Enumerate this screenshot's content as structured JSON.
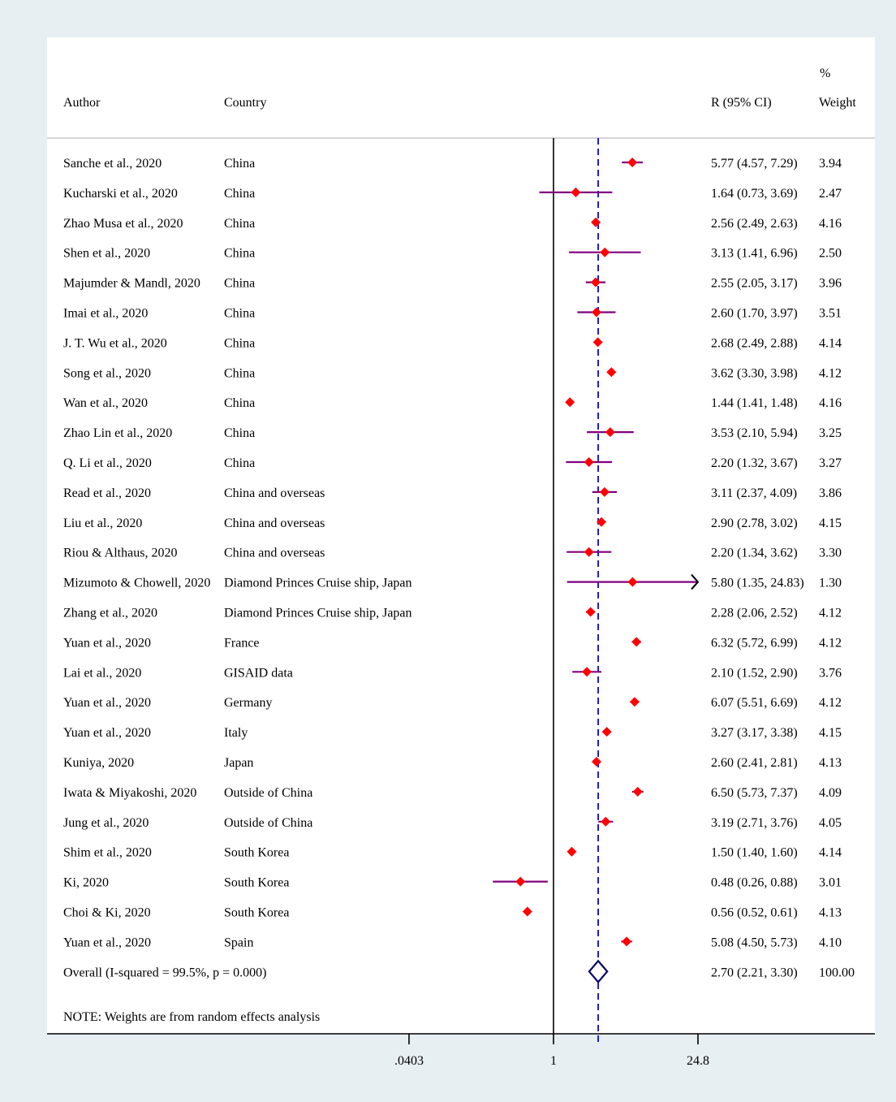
{
  "chart_data": {
    "type": "forest",
    "x_scale": "log",
    "null_value": 1,
    "ticks": [
      {
        "value": 0.0403,
        "label": ".0403"
      },
      {
        "value": 1,
        "label": "1"
      },
      {
        "value": 24.8,
        "label": "24.8"
      }
    ],
    "header": {
      "author": "Author",
      "country": "Country",
      "estimate": "R (95% CI)",
      "weight_pct": "%",
      "weight": "Weight"
    },
    "colors": {
      "point": "#ff0000",
      "ci": "#800080",
      "pooled_line": "#0000ff",
      "pooled_diamond": "#000066",
      "panel": "#ffffff",
      "background": "#e8eff3"
    },
    "studies": [
      {
        "author": "Sanche et al., 2020",
        "country": "China",
        "r": 5.77,
        "lo": 4.57,
        "hi": 7.29,
        "label": "5.77 (4.57, 7.29)",
        "weight": "3.94"
      },
      {
        "author": "Kucharski et al., 2020",
        "country": "China",
        "r": 1.64,
        "lo": 0.73,
        "hi": 3.69,
        "label": "1.64 (0.73, 3.69)",
        "weight": "2.47"
      },
      {
        "author": "Zhao Musa et al., 2020",
        "country": "China",
        "r": 2.56,
        "lo": 2.49,
        "hi": 2.63,
        "label": "2.56 (2.49, 2.63)",
        "weight": "4.16"
      },
      {
        "author": "Shen et al., 2020",
        "country": "China",
        "r": 3.13,
        "lo": 1.41,
        "hi": 6.96,
        "label": "3.13 (1.41, 6.96)",
        "weight": "2.50"
      },
      {
        "author": "Majumder & Mandl, 2020",
        "country": "China",
        "r": 2.55,
        "lo": 2.05,
        "hi": 3.17,
        "label": "2.55 (2.05, 3.17)",
        "weight": "3.96"
      },
      {
        "author": "Imai et al., 2020",
        "country": "China",
        "r": 2.6,
        "lo": 1.7,
        "hi": 3.97,
        "label": "2.60 (1.70, 3.97)",
        "weight": "3.51"
      },
      {
        "author": "J. T. Wu et al., 2020",
        "country": "China",
        "r": 2.68,
        "lo": 2.49,
        "hi": 2.88,
        "label": "2.68 (2.49, 2.88)",
        "weight": "4.14"
      },
      {
        "author": "Song et al., 2020",
        "country": "China",
        "r": 3.62,
        "lo": 3.3,
        "hi": 3.98,
        "label": "3.62 (3.30, 3.98)",
        "weight": "4.12"
      },
      {
        "author": "Wan et al., 2020",
        "country": "China",
        "r": 1.44,
        "lo": 1.41,
        "hi": 1.48,
        "label": "1.44 (1.41, 1.48)",
        "weight": "4.16"
      },
      {
        "author": "Zhao Lin et al., 2020",
        "country": "China",
        "r": 3.53,
        "lo": 2.1,
        "hi": 5.94,
        "label": "3.53 (2.10, 5.94)",
        "weight": "3.25"
      },
      {
        "author": "Q. Li et al., 2020",
        "country": "China",
        "r": 2.2,
        "lo": 1.32,
        "hi": 3.67,
        "label": "2.20 (1.32, 3.67)",
        "weight": "3.27"
      },
      {
        "author": "Read et al., 2020",
        "country": "China and overseas",
        "r": 3.11,
        "lo": 2.37,
        "hi": 4.09,
        "label": "3.11 (2.37, 4.09)",
        "weight": "3.86"
      },
      {
        "author": "Liu et al., 2020",
        "country": "China and overseas",
        "r": 2.9,
        "lo": 2.78,
        "hi": 3.02,
        "label": "2.90 (2.78, 3.02)",
        "weight": "4.15"
      },
      {
        "author": "Riou & Althaus, 2020",
        "country": "China and overseas",
        "r": 2.2,
        "lo": 1.34,
        "hi": 3.62,
        "label": "2.20 (1.34, 3.62)",
        "weight": "3.30"
      },
      {
        "author": "Mizumoto & Chowell, 2020",
        "country": "Diamond Princes Cruise ship, Japan",
        "r": 5.8,
        "lo": 1.35,
        "hi": 24.83,
        "label": "5.80 (1.35, 24.83)",
        "weight": "1.30"
      },
      {
        "author": "Zhang et al., 2020",
        "country": "Diamond Princes Cruise ship, Japan",
        "r": 2.28,
        "lo": 2.06,
        "hi": 2.52,
        "label": "2.28 (2.06, 2.52)",
        "weight": "4.12"
      },
      {
        "author": "Yuan et al., 2020",
        "country": "France",
        "r": 6.32,
        "lo": 5.72,
        "hi": 6.99,
        "label": "6.32 (5.72, 6.99)",
        "weight": "4.12"
      },
      {
        "author": "Lai et al., 2020",
        "country": "GISAID data",
        "r": 2.1,
        "lo": 1.52,
        "hi": 2.9,
        "label": "2.10 (1.52, 2.90)",
        "weight": "3.76"
      },
      {
        "author": "Yuan et al., 2020",
        "country": "Germany",
        "r": 6.07,
        "lo": 5.51,
        "hi": 6.69,
        "label": "6.07 (5.51, 6.69)",
        "weight": "4.12"
      },
      {
        "author": "Yuan et al., 2020",
        "country": "Italy",
        "r": 3.27,
        "lo": 3.17,
        "hi": 3.38,
        "label": "3.27 (3.17, 3.38)",
        "weight": "4.15"
      },
      {
        "author": "Kuniya, 2020",
        "country": "Japan",
        "r": 2.6,
        "lo": 2.41,
        "hi": 2.81,
        "label": "2.60 (2.41, 2.81)",
        "weight": "4.13"
      },
      {
        "author": "Iwata & Miyakoshi, 2020",
        "country": "Outside of China",
        "r": 6.5,
        "lo": 5.73,
        "hi": 7.37,
        "label": "6.50 (5.73, 7.37)",
        "weight": "4.09"
      },
      {
        "author": "Jung et al., 2020",
        "country": "Outside of China",
        "r": 3.19,
        "lo": 2.71,
        "hi": 3.76,
        "label": "3.19 (2.71, 3.76)",
        "weight": "4.05"
      },
      {
        "author": "Shim et al., 2020",
        "country": "South Korea",
        "r": 1.5,
        "lo": 1.4,
        "hi": 1.6,
        "label": "1.50 (1.40, 1.60)",
        "weight": "4.14"
      },
      {
        "author": "Ki, 2020",
        "country": "South Korea",
        "r": 0.48,
        "lo": 0.26,
        "hi": 0.88,
        "label": "0.48 (0.26, 0.88)",
        "weight": "3.01"
      },
      {
        "author": "Choi & Ki, 2020",
        "country": "South Korea",
        "r": 0.56,
        "lo": 0.52,
        "hi": 0.61,
        "label": "0.56 (0.52, 0.61)",
        "weight": "4.13"
      },
      {
        "author": "Yuan et al., 2020",
        "country": "Spain",
        "r": 5.08,
        "lo": 4.5,
        "hi": 5.73,
        "label": "5.08 (4.50, 5.73)",
        "weight": "4.10"
      }
    ],
    "overall": {
      "label_text": "Overall  (I-squared = 99.5%, p = 0.000)",
      "r": 2.7,
      "lo": 2.21,
      "hi": 3.3,
      "label": "2.70 (2.21, 3.30)",
      "weight": "100.00"
    },
    "note": "NOTE: Weights are from random effects analysis"
  }
}
